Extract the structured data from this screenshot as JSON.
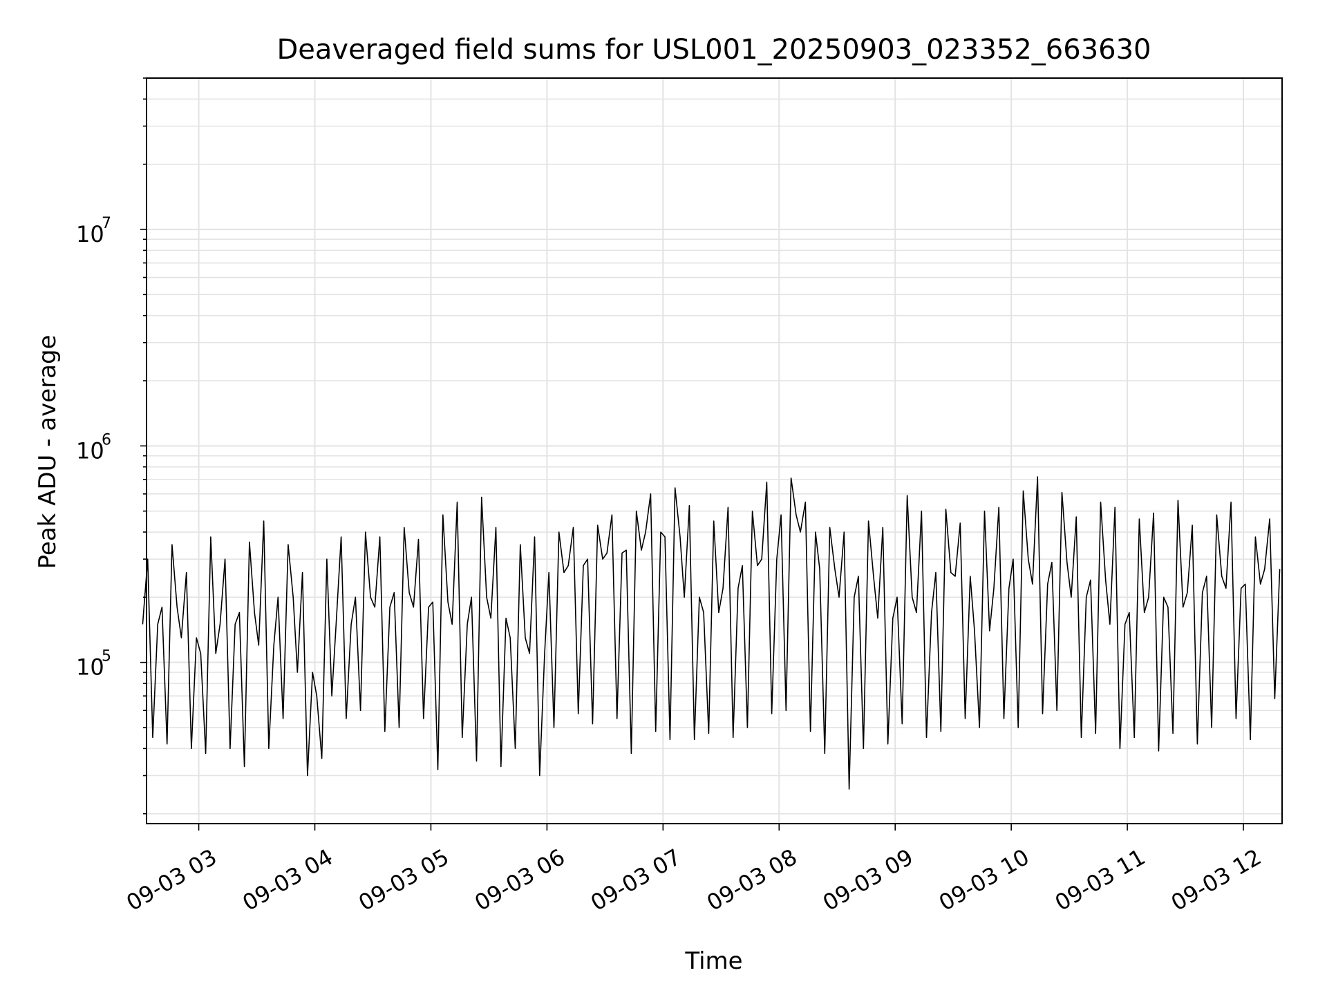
{
  "chart_data": {
    "type": "line",
    "title": "Deaveraged field sums for USL001_20250903_023352_663630",
    "xlabel": "Time",
    "ylabel": "Peak ADU - average",
    "yscale": "log",
    "ylim": [
      18000,
      50000000
    ],
    "xlim": [
      "2025-09-03 02:33",
      "2025-09-03 12:20"
    ],
    "grid": true,
    "x_tick_labels": [
      "09-03 03",
      "09-03 04",
      "09-03 05",
      "09-03 06",
      "09-03 07",
      "09-03 08",
      "09-03 09",
      "09-03 10",
      "09-03 11",
      "09-03 12"
    ],
    "y_tick_labels": [
      {
        "base": "10",
        "exp": "5",
        "value": 100000
      },
      {
        "base": "10",
        "exp": "6",
        "value": 1000000
      },
      {
        "base": "10",
        "exp": "7",
        "value": 10000000
      }
    ],
    "series": [
      {
        "color": "#000000",
        "x": [
          "2025-09-03 02:35",
          "2025-09-03 02:45",
          "2025-09-03 02:55",
          "2025-09-03 03:05",
          "2025-09-03 03:15",
          "2025-09-03 03:25",
          "2025-09-03 03:35",
          "2025-09-03 03:45",
          "2025-09-03 03:55",
          "2025-09-03 04:05",
          "2025-09-03 04:15",
          "2025-09-03 04:25",
          "2025-09-03 04:35",
          "2025-09-03 04:45",
          "2025-09-03 04:55",
          "2025-09-03 05:05",
          "2025-09-03 05:15",
          "2025-09-03 05:25",
          "2025-09-03 05:35",
          "2025-09-03 05:45",
          "2025-09-03 05:55",
          "2025-09-03 06:05",
          "2025-09-03 06:15",
          "2025-09-03 06:25",
          "2025-09-03 06:35",
          "2025-09-03 06:45",
          "2025-09-03 06:55",
          "2025-09-03 07:05",
          "2025-09-03 07:15",
          "2025-09-03 07:25",
          "2025-09-03 07:35",
          "2025-09-03 07:45",
          "2025-09-03 07:55",
          "2025-09-03 08:05",
          "2025-09-03 08:15",
          "2025-09-03 08:25",
          "2025-09-03 08:35",
          "2025-09-03 08:45",
          "2025-09-03 08:55",
          "2025-09-03 09:05",
          "2025-09-03 09:15",
          "2025-09-03 09:25",
          "2025-09-03 09:35",
          "2025-09-03 09:45",
          "2025-09-03 09:55",
          "2025-09-03 10:05",
          "2025-09-03 10:15",
          "2025-09-03 10:25",
          "2025-09-03 10:35",
          "2025-09-03 10:45",
          "2025-09-03 10:55",
          "2025-09-03 11:05",
          "2025-09-03 11:15",
          "2025-09-03 11:25",
          "2025-09-03 11:35",
          "2025-09-03 11:45",
          "2025-09-03 11:55",
          "2025-09-03 12:05",
          "2025-09-03 12:15"
        ],
        "y": [
          150000,
          180000,
          130000,
          110000,
          150000,
          170000,
          120000,
          200000,
          90000,
          70000,
          150000,
          200000,
          180000,
          210000,
          180000,
          190000,
          150000,
          200000,
          160000,
          130000,
          110000,
          260000,
          280000,
          300000,
          320000,
          330000,
          400000,
          380000,
          200000,
          170000,
          220000,
          280000,
          300000,
          480000,
          400000,
          270000,
          200000,
          250000,
          160000,
          200000,
          170000,
          260000,
          250000,
          140000,
          220000,
          300000,
          230000,
          290000,
          200000,
          240000,
          150000,
          170000,
          200000,
          180000,
          210000,
          250000,
          220000,
          230000,
          270000
        ],
        "y_max": [
          300000,
          350000,
          260000,
          380000,
          300000,
          360000,
          450000,
          350000,
          260000,
          300000,
          380000,
          400000,
          380000,
          420000,
          370000,
          480000,
          550000,
          580000,
          420000,
          350000,
          380000,
          400000,
          420000,
          430000,
          480000,
          500000,
          600000,
          640000,
          530000,
          450000,
          520000,
          500000,
          680000,
          710000,
          550000,
          420000,
          400000,
          450000,
          420000,
          590000,
          500000,
          510000,
          440000,
          500000,
          520000,
          620000,
          720000,
          610000,
          470000,
          550000,
          520000,
          460000,
          490000,
          560000,
          430000,
          480000,
          550000,
          380000,
          460000
        ],
        "y_min": [
          45000,
          42000,
          40000,
          38000,
          40000,
          33000,
          40000,
          55000,
          30000,
          36000,
          55000,
          60000,
          48000,
          50000,
          55000,
          32000,
          45000,
          35000,
          33000,
          40000,
          30000,
          50000,
          58000,
          52000,
          55000,
          38000,
          48000,
          44000,
          44000,
          47000,
          45000,
          50000,
          58000,
          60000,
          48000,
          38000,
          26000,
          40000,
          42000,
          52000,
          45000,
          48000,
          55000,
          50000,
          55000,
          50000,
          58000,
          60000,
          45000,
          47000,
          40000,
          45000,
          39000,
          47000,
          42000,
          50000,
          55000,
          44000,
          68000
        ]
      }
    ]
  }
}
